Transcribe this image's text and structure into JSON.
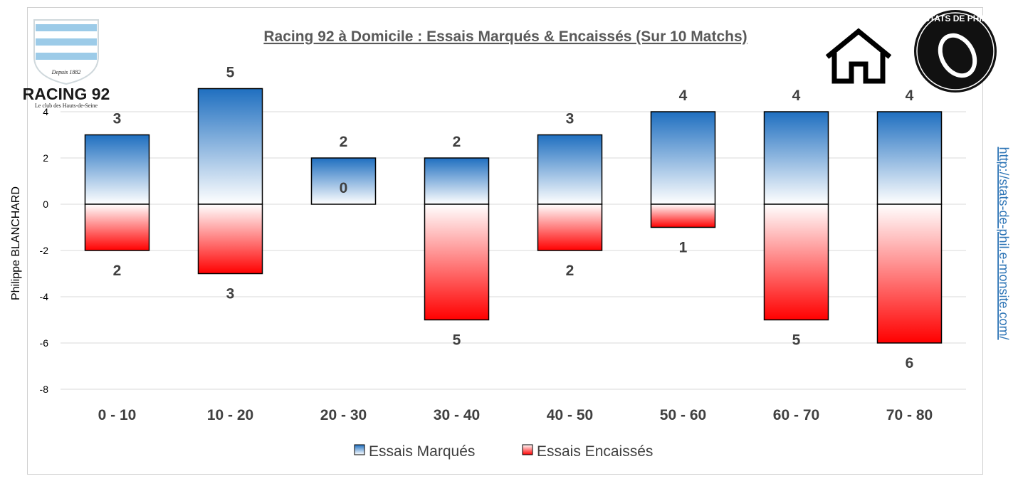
{
  "chart_data": {
    "type": "bar",
    "title": "Racing 92 à Domicile : Essais Marqués & Encaissés (Sur 10 Matchs)",
    "categories": [
      "0 - 10",
      "10 - 20",
      "20 - 30",
      "30 - 40",
      "40 - 50",
      "50 - 60",
      "60 - 70",
      "70 - 80"
    ],
    "series": [
      {
        "name": "Essais Marqués",
        "values": [
          3,
          5,
          2,
          2,
          3,
          4,
          4,
          4
        ],
        "labels": [
          "3",
          "5",
          "2",
          "2",
          "3",
          "4",
          "4",
          "4"
        ],
        "color_top": "#1f6fc0"
      },
      {
        "name": "Essais Encaissés",
        "values": [
          -2,
          -3,
          0,
          -5,
          -2,
          -1,
          -5,
          -6
        ],
        "labels": [
          "2",
          "3",
          "0",
          "5",
          "2",
          "1",
          "5",
          "6"
        ],
        "color_bottom": "#ff0000"
      }
    ],
    "ylim": [
      -8,
      4
    ],
    "yticks": [
      "-8",
      "-6",
      "-4",
      "-2",
      "0",
      "2",
      "4"
    ],
    "grid": true,
    "legend": "bottom"
  },
  "side": {
    "author": "Philippe BLANCHARD",
    "url": "http://stats-de-phil.e-monsite.com/"
  },
  "logos": {
    "club_name": "RACING 92",
    "club_tagline": "Le club des Hauts-de-Seine",
    "club_since": "Depuis 1882",
    "badge_text": "STATS DE PHIL",
    "home_icon": "house-icon"
  }
}
